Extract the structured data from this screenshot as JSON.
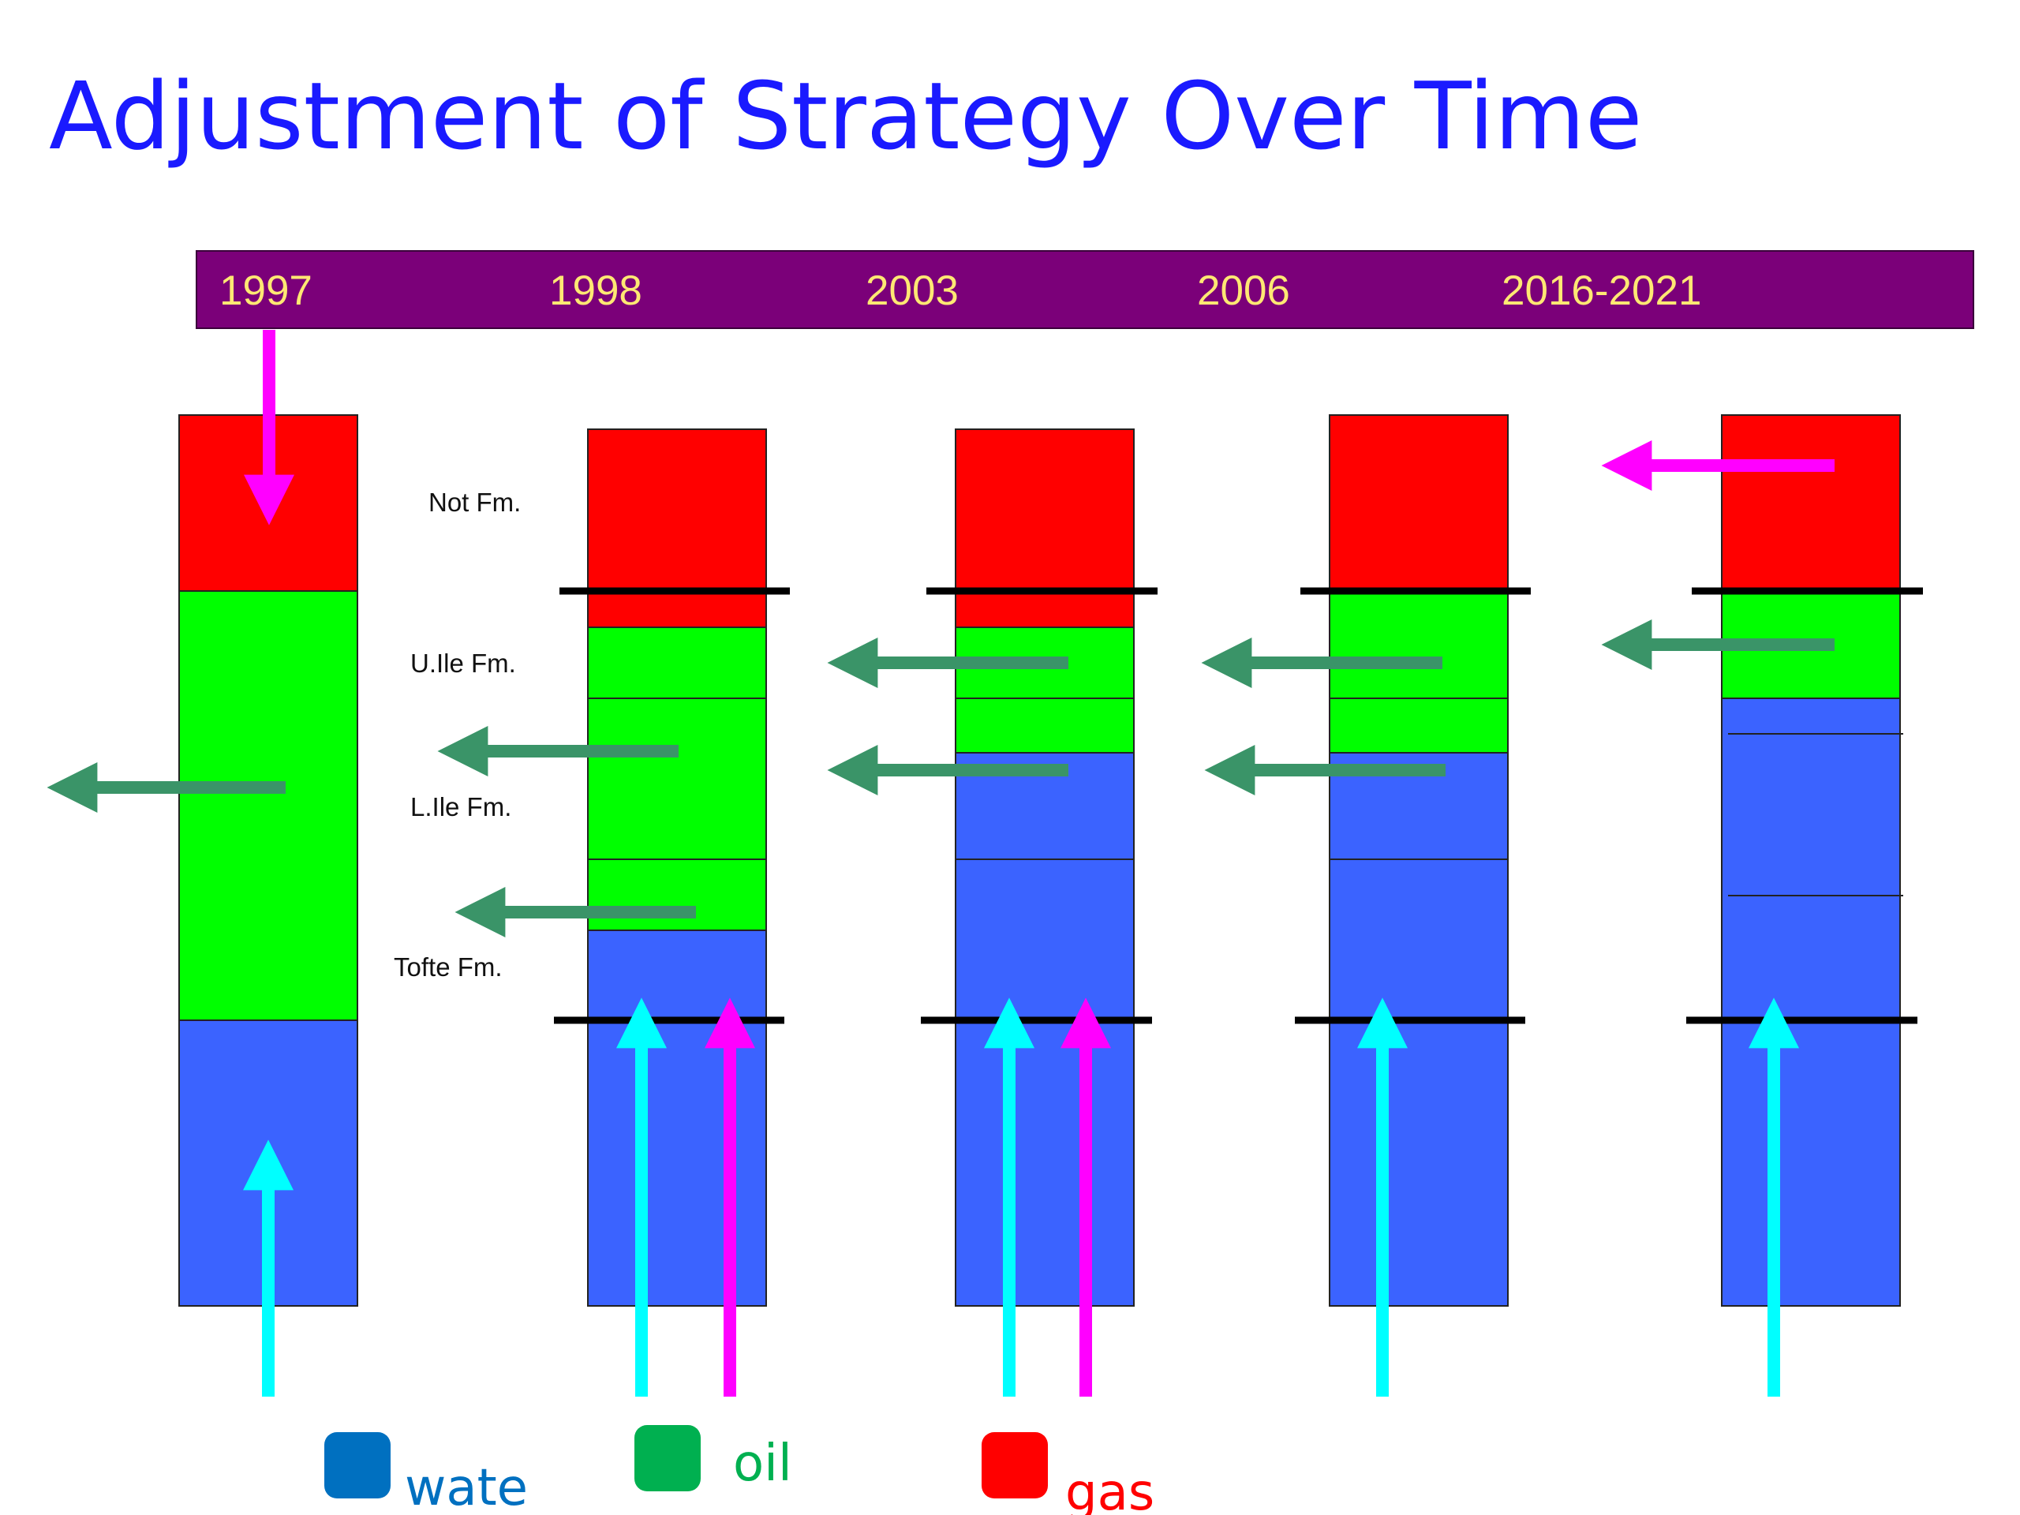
{
  "title": "Adjustment of Strategy Over Time",
  "timeline": {
    "years": [
      "1997",
      "1998",
      "2003",
      "2006",
      "2016-2021"
    ]
  },
  "formations": {
    "not": "Not Fm.",
    "uile": "U.Ile Fm.",
    "lile": "L.Ile Fm.",
    "tofte": "Tofte Fm."
  },
  "legend": {
    "water": "wate",
    "oil": "oil",
    "gas": "gas"
  },
  "colors": {
    "title": "#1a1aff",
    "timeline_bar": "#7b0079",
    "year_text": "#ffe873",
    "gas": "#ff0000",
    "oil": "#00ff00",
    "water": "#3b63ff",
    "water_injection_arrow": "#00ffff",
    "gas_injection_arrow": "#ff00ff",
    "production_arrow": "#3a9468",
    "legend_water": "#0070c0",
    "legend_oil": "#00b050",
    "legend_gas": "#ff0000"
  },
  "columns": [
    {
      "id": "1997",
      "fluids": [
        "gas",
        "oil",
        "water"
      ]
    },
    {
      "id": "1998",
      "fluids": [
        "gas",
        "oil",
        "water"
      ]
    },
    {
      "id": "2003",
      "fluids": [
        "gas",
        "oil",
        "water"
      ]
    },
    {
      "id": "2006",
      "fluids": [
        "gas",
        "oil",
        "water"
      ]
    },
    {
      "id": "2016-2021",
      "fluids": [
        "gas",
        "oil",
        "water"
      ]
    }
  ]
}
